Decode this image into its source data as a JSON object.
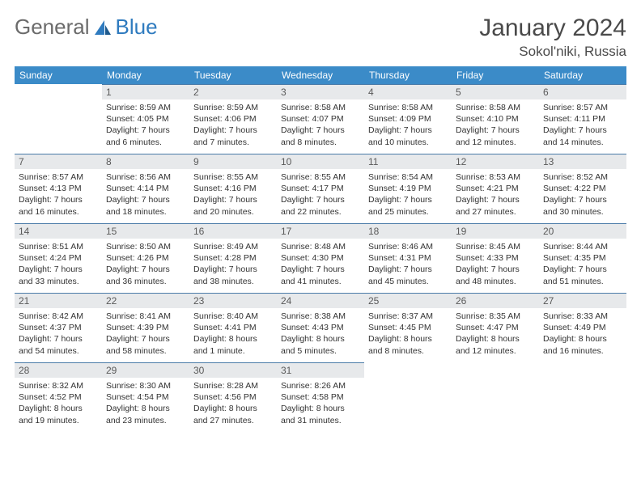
{
  "logo": {
    "text1": "General",
    "text2": "Blue"
  },
  "title": "January 2024",
  "location": "Sokol'niki, Russia",
  "colors": {
    "header_bg": "#3b8bc8",
    "header_text": "#ffffff",
    "daynum_bg": "#e7e9eb",
    "daynum_border": "#4a7ba8",
    "body_text": "#333333",
    "logo_gray": "#6b6b6b",
    "logo_blue": "#2f7bbf"
  },
  "weekdays": [
    "Sunday",
    "Monday",
    "Tuesday",
    "Wednesday",
    "Thursday",
    "Friday",
    "Saturday"
  ],
  "weeks": [
    [
      null,
      {
        "n": "1",
        "sr": "8:59 AM",
        "ss": "4:05 PM",
        "dl": "7 hours and 6 minutes."
      },
      {
        "n": "2",
        "sr": "8:59 AM",
        "ss": "4:06 PM",
        "dl": "7 hours and 7 minutes."
      },
      {
        "n": "3",
        "sr": "8:58 AM",
        "ss": "4:07 PM",
        "dl": "7 hours and 8 minutes."
      },
      {
        "n": "4",
        "sr": "8:58 AM",
        "ss": "4:09 PM",
        "dl": "7 hours and 10 minutes."
      },
      {
        "n": "5",
        "sr": "8:58 AM",
        "ss": "4:10 PM",
        "dl": "7 hours and 12 minutes."
      },
      {
        "n": "6",
        "sr": "8:57 AM",
        "ss": "4:11 PM",
        "dl": "7 hours and 14 minutes."
      }
    ],
    [
      {
        "n": "7",
        "sr": "8:57 AM",
        "ss": "4:13 PM",
        "dl": "7 hours and 16 minutes."
      },
      {
        "n": "8",
        "sr": "8:56 AM",
        "ss": "4:14 PM",
        "dl": "7 hours and 18 minutes."
      },
      {
        "n": "9",
        "sr": "8:55 AM",
        "ss": "4:16 PM",
        "dl": "7 hours and 20 minutes."
      },
      {
        "n": "10",
        "sr": "8:55 AM",
        "ss": "4:17 PM",
        "dl": "7 hours and 22 minutes."
      },
      {
        "n": "11",
        "sr": "8:54 AM",
        "ss": "4:19 PM",
        "dl": "7 hours and 25 minutes."
      },
      {
        "n": "12",
        "sr": "8:53 AM",
        "ss": "4:21 PM",
        "dl": "7 hours and 27 minutes."
      },
      {
        "n": "13",
        "sr": "8:52 AM",
        "ss": "4:22 PM",
        "dl": "7 hours and 30 minutes."
      }
    ],
    [
      {
        "n": "14",
        "sr": "8:51 AM",
        "ss": "4:24 PM",
        "dl": "7 hours and 33 minutes."
      },
      {
        "n": "15",
        "sr": "8:50 AM",
        "ss": "4:26 PM",
        "dl": "7 hours and 36 minutes."
      },
      {
        "n": "16",
        "sr": "8:49 AM",
        "ss": "4:28 PM",
        "dl": "7 hours and 38 minutes."
      },
      {
        "n": "17",
        "sr": "8:48 AM",
        "ss": "4:30 PM",
        "dl": "7 hours and 41 minutes."
      },
      {
        "n": "18",
        "sr": "8:46 AM",
        "ss": "4:31 PM",
        "dl": "7 hours and 45 minutes."
      },
      {
        "n": "19",
        "sr": "8:45 AM",
        "ss": "4:33 PM",
        "dl": "7 hours and 48 minutes."
      },
      {
        "n": "20",
        "sr": "8:44 AM",
        "ss": "4:35 PM",
        "dl": "7 hours and 51 minutes."
      }
    ],
    [
      {
        "n": "21",
        "sr": "8:42 AM",
        "ss": "4:37 PM",
        "dl": "7 hours and 54 minutes."
      },
      {
        "n": "22",
        "sr": "8:41 AM",
        "ss": "4:39 PM",
        "dl": "7 hours and 58 minutes."
      },
      {
        "n": "23",
        "sr": "8:40 AM",
        "ss": "4:41 PM",
        "dl": "8 hours and 1 minute."
      },
      {
        "n": "24",
        "sr": "8:38 AM",
        "ss": "4:43 PM",
        "dl": "8 hours and 5 minutes."
      },
      {
        "n": "25",
        "sr": "8:37 AM",
        "ss": "4:45 PM",
        "dl": "8 hours and 8 minutes."
      },
      {
        "n": "26",
        "sr": "8:35 AM",
        "ss": "4:47 PM",
        "dl": "8 hours and 12 minutes."
      },
      {
        "n": "27",
        "sr": "8:33 AM",
        "ss": "4:49 PM",
        "dl": "8 hours and 16 minutes."
      }
    ],
    [
      {
        "n": "28",
        "sr": "8:32 AM",
        "ss": "4:52 PM",
        "dl": "8 hours and 19 minutes."
      },
      {
        "n": "29",
        "sr": "8:30 AM",
        "ss": "4:54 PM",
        "dl": "8 hours and 23 minutes."
      },
      {
        "n": "30",
        "sr": "8:28 AM",
        "ss": "4:56 PM",
        "dl": "8 hours and 27 minutes."
      },
      {
        "n": "31",
        "sr": "8:26 AM",
        "ss": "4:58 PM",
        "dl": "8 hours and 31 minutes."
      },
      null,
      null,
      null
    ]
  ],
  "labels": {
    "sunrise": "Sunrise: ",
    "sunset": "Sunset: ",
    "daylight": "Daylight: "
  }
}
